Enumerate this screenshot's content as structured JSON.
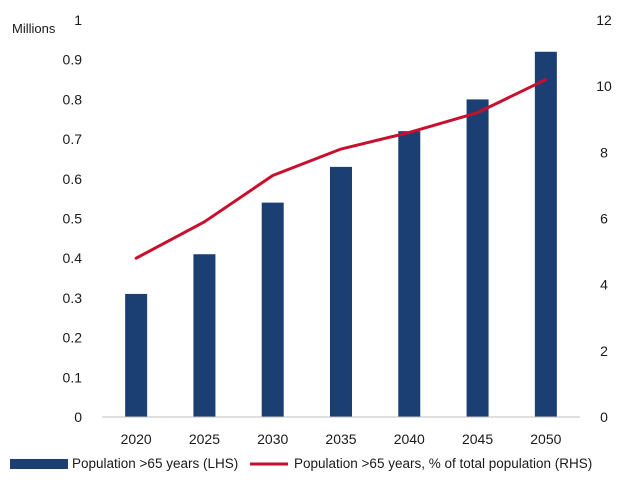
{
  "chart_data": {
    "type": "bar+line",
    "unit_label_left": "Millions",
    "categories": [
      "2020",
      "2025",
      "2030",
      "2035",
      "2040",
      "2045",
      "2050"
    ],
    "series": [
      {
        "name": "Population >65 years (LHS)",
        "type": "bar",
        "axis": "left",
        "color": "#1b3f73",
        "values": [
          0.31,
          0.41,
          0.54,
          0.63,
          0.72,
          0.8,
          0.92
        ]
      },
      {
        "name": "Population >65 years, % of total population (RHS)",
        "type": "line",
        "axis": "right",
        "color": "#c8102e",
        "values": [
          4.8,
          5.9,
          7.3,
          8.1,
          8.6,
          9.2,
          10.2
        ]
      }
    ],
    "y_left": {
      "range": [
        0,
        1
      ],
      "ticks": [
        "0",
        "0.1",
        "0.2",
        "0.3",
        "0.4",
        "0.5",
        "0.6",
        "0.7",
        "0.8",
        "0.9",
        "1"
      ]
    },
    "y_right": {
      "range": [
        0,
        12
      ],
      "ticks": [
        "0",
        "2",
        "4",
        "6",
        "8",
        "10",
        "12"
      ]
    },
    "grid": false,
    "legend_position": "bottom"
  }
}
